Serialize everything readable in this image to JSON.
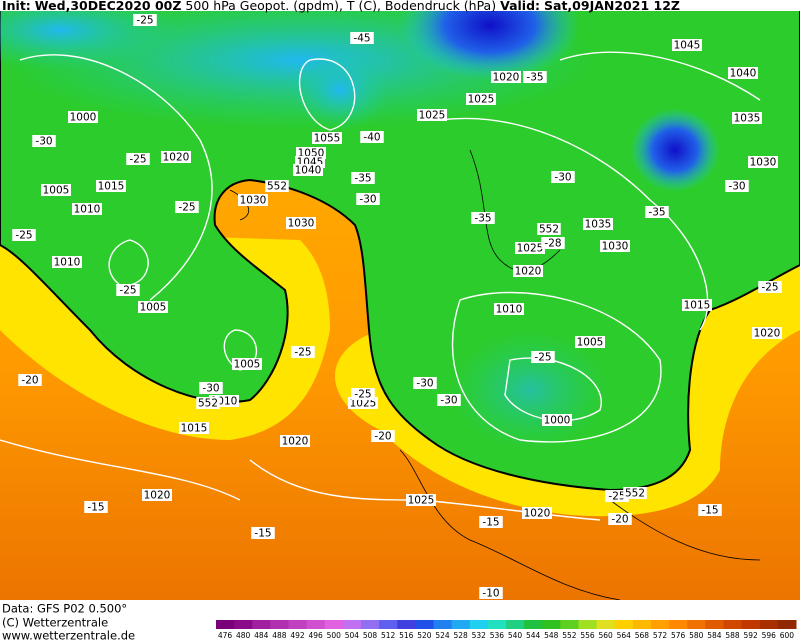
{
  "header": {
    "init_label": "Init:",
    "init_time": "Wed,30DEC2020 00Z",
    "description": "500 hPa Geopot. (gpdm), T (C), Bodendruck (hPa)",
    "valid_label": "Valid:",
    "valid_time": "Sat,09JAN2021 12Z"
  },
  "footer": {
    "data_source": "Data: GFS P02 0.500°",
    "copyright": "(C) Wetterzentrale",
    "website": "www.wetterzentrale.de"
  },
  "contour_labels": [
    1000,
    1020,
    1015,
    1005,
    1010,
    1010,
    1005,
    1005,
    1010,
    1015,
    1020,
    1020,
    1025,
    1030,
    1030,
    1055,
    1050,
    1045,
    1040,
    1025,
    1025,
    1020,
    1045,
    1040,
    1035,
    1030,
    1035,
    1030,
    1025,
    1020,
    1010,
    1015,
    1020,
    1005,
    1000,
    1025,
    1020,
    -25,
    -45,
    -35,
    -40,
    -30,
    -25,
    -25,
    -35,
    -30,
    -25,
    -25,
    -35,
    -30,
    -30,
    -35,
    -28,
    -25,
    -25,
    -30,
    -30,
    -30,
    -25,
    -25,
    -20,
    -20,
    -25,
    -20,
    -15,
    -15,
    -15,
    -15,
    -10,
    552,
    552,
    552,
    552
  ],
  "colorbar": {
    "labels": [
      476,
      480,
      484,
      488,
      492,
      496,
      500,
      504,
      508,
      512,
      516,
      520,
      524,
      528,
      532,
      536,
      540,
      544,
      548,
      552,
      556,
      560,
      564,
      568,
      572,
      576,
      580,
      584,
      588,
      592,
      596,
      600
    ],
    "colors": [
      "#7a007a",
      "#8a0a8a",
      "#a020a0",
      "#b030b0",
      "#c040c0",
      "#d050d0",
      "#e060e0",
      "#c070f0",
      "#9070f0",
      "#6060f0",
      "#4040e0",
      "#2050e8",
      "#2080f0",
      "#20a8f0",
      "#20d0f0",
      "#20e0c0",
      "#20d080",
      "#20c040",
      "#30c020",
      "#60d020",
      "#a0e020",
      "#e0e020",
      "#ffd000",
      "#ffb800",
      "#ffa000",
      "#ff8800",
      "#f07000",
      "#e05a00",
      "#d04800",
      "#c03800",
      "#a83000",
      "#902800"
    ]
  }
}
